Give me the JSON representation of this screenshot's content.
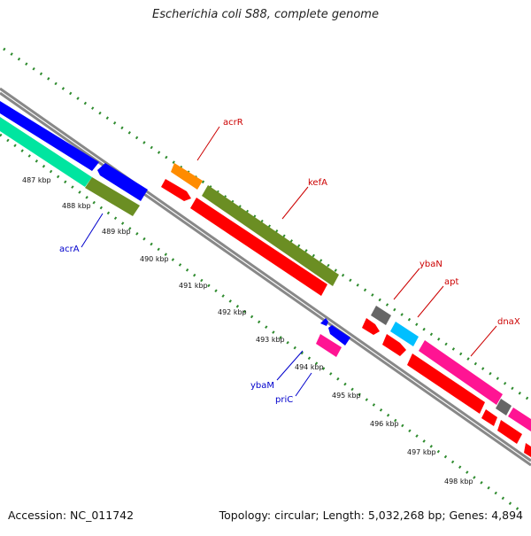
{
  "title": "Escherichia coli S88, complete genome",
  "footer": {
    "accession": "Accession: NC_011742",
    "topology": "Topology: circular; Length: 5,032,268 bp; Genes: 4,894"
  },
  "colors": {
    "backbone": "#888888",
    "tick": "#2e8b2e",
    "forward_label": "#cc0000",
    "reverse_label": "#0000cc",
    "gene_red": "#ff0000",
    "gene_olive": "#6b8e23",
    "gene_orange": "#ff8c00",
    "gene_grey": "#666666",
    "gene_cyan": "#00bfff",
    "gene_magenta": "#ff1493",
    "gene_blue": "#0000ff",
    "gene_aqua": "#00e5a0"
  },
  "scale": {
    "unit": "kbp",
    "labels": [
      "487 kbp",
      "488 kbp",
      "489 kbp",
      "490 kbp",
      "491 kbp",
      "492 kbp",
      "493 kbp",
      "494 kbp",
      "495 kbp",
      "496 kbp",
      "497 kbp",
      "498 kbp"
    ]
  },
  "gene_labels": {
    "forward": [
      "acrR",
      "kefA",
      "ybaN",
      "apt",
      "dnaX"
    ],
    "reverse": [
      "acrA",
      "ybaM",
      "priC"
    ]
  }
}
